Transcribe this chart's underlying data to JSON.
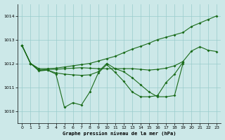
{
  "title": "Graphe pression niveau de la mer (hPa)",
  "bg_color": "#cce8e8",
  "grid_color": "#99cccc",
  "line_color": "#1a6b1a",
  "xlim": [
    -0.5,
    23.5
  ],
  "ylim": [
    1009.5,
    1014.5
  ],
  "yticks": [
    1010,
    1011,
    1012,
    1013,
    1014
  ],
  "xticks": [
    0,
    1,
    2,
    3,
    4,
    5,
    6,
    7,
    8,
    9,
    10,
    11,
    12,
    13,
    14,
    15,
    16,
    17,
    18,
    19,
    20,
    21,
    22,
    23
  ],
  "series": {
    "s1": {
      "x": [
        0,
        1,
        2,
        3,
        4,
        5,
        6,
        7,
        8,
        9,
        10,
        11,
        12,
        13,
        14,
        15,
        16,
        17,
        18,
        19,
        20,
        21,
        22,
        23
      ],
      "y": [
        1012.75,
        1012.0,
        1011.78,
        1011.78,
        1011.8,
        1011.85,
        1011.9,
        1011.95,
        1012.0,
        1012.1,
        1012.2,
        1012.3,
        1012.45,
        1012.6,
        1012.72,
        1012.85,
        1013.0,
        1013.1,
        1013.2,
        1013.3,
        1013.55,
        1013.7,
        1013.85,
        1014.0
      ]
    },
    "s2": {
      "x": [
        0,
        1,
        2,
        3,
        4,
        5,
        6,
        7,
        8,
        9,
        10,
        11,
        12,
        13,
        14,
        15,
        16,
        17,
        18,
        19,
        20,
        21,
        22,
        23
      ],
      "y": [
        1012.75,
        1012.0,
        1011.72,
        1011.75,
        1011.75,
        1011.78,
        1011.8,
        1011.82,
        1011.8,
        1011.78,
        1011.78,
        1011.78,
        1011.78,
        1011.78,
        1011.75,
        1011.72,
        1011.75,
        1011.8,
        1011.9,
        1012.08,
        1012.52,
        1012.7,
        1012.55,
        1012.5
      ]
    },
    "s3": {
      "x": [
        0,
        1,
        2,
        3,
        4,
        5,
        6,
        7,
        8,
        9,
        10,
        11,
        12,
        13,
        14,
        15,
        16,
        17,
        18,
        19
      ],
      "y": [
        1012.75,
        1012.0,
        1011.72,
        1011.72,
        1011.55,
        1010.15,
        1010.35,
        1010.25,
        1010.8,
        1011.6,
        1011.95,
        1011.62,
        1011.25,
        1010.8,
        1010.6,
        1010.6,
        1010.65,
        1011.2,
        1011.55,
        1012.05
      ]
    },
    "s4": {
      "x": [
        0,
        1,
        2,
        3,
        4,
        5,
        6,
        7,
        8,
        9,
        10,
        11,
        12,
        13,
        14,
        15,
        16,
        17,
        18,
        19
      ],
      "y": [
        1012.75,
        1012.0,
        1011.68,
        1011.72,
        1011.6,
        1011.55,
        1011.52,
        1011.5,
        1011.52,
        1011.65,
        1012.0,
        1011.78,
        1011.65,
        1011.4,
        1011.1,
        1010.8,
        1010.6,
        1010.6,
        1010.65,
        1012.0
      ]
    }
  }
}
